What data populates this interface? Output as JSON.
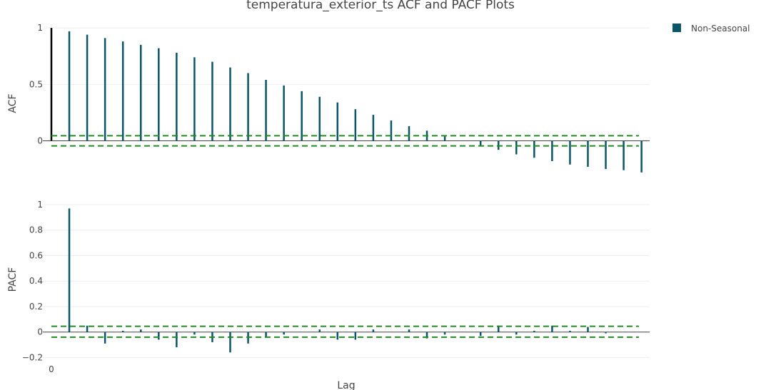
{
  "colors": {
    "series": "#0b5569",
    "lag0": "#000000",
    "confidence": "#228b22",
    "zero_line": "#444444",
    "grid": "#eeeeee"
  },
  "chart_data": {
    "type": "bar",
    "title": "temperatura_exterior_ts ACF and PACF Plots",
    "xlabel": "Lag",
    "x_tick_labels": [
      "0"
    ],
    "legend": {
      "position": "top-right",
      "entries": [
        "Non-Seasonal"
      ]
    },
    "grid": true,
    "subplots": [
      {
        "name": "acf",
        "ylabel": "ACF",
        "ylim": [
          -0.3,
          1.02
        ],
        "y_ticks": [
          0,
          0.5,
          1
        ],
        "y_tick_labels": [
          "0",
          "0.5",
          "1"
        ],
        "confidence_band": [
          -0.045,
          0.045
        ],
        "lags": [
          0,
          1,
          2,
          3,
          4,
          5,
          6,
          7,
          8,
          9,
          10,
          11,
          12,
          13,
          14,
          15,
          16,
          17,
          18,
          19,
          20,
          21,
          22,
          23,
          24,
          25,
          26,
          27,
          28,
          29,
          30,
          31,
          32,
          33
        ],
        "values": [
          1.0,
          0.97,
          0.94,
          0.91,
          0.88,
          0.85,
          0.82,
          0.78,
          0.74,
          0.7,
          0.65,
          0.6,
          0.54,
          0.49,
          0.44,
          0.39,
          0.34,
          0.28,
          0.23,
          0.18,
          0.13,
          0.09,
          0.04,
          0.0,
          -0.04,
          -0.08,
          -0.12,
          -0.15,
          -0.18,
          -0.21,
          -0.23,
          -0.25,
          -0.26,
          -0.28
        ]
      },
      {
        "name": "pacf",
        "ylabel": "PACF",
        "ylim": [
          -0.22,
          1.0
        ],
        "y_ticks": [
          -0.2,
          0,
          0.2,
          0.4,
          0.6,
          0.8,
          1
        ],
        "y_tick_labels": [
          "−0.2",
          "0",
          "0.2",
          "0.4",
          "0.6",
          "0.8",
          "1"
        ],
        "confidence_band": [
          -0.04,
          0.045
        ],
        "lags": [
          1,
          2,
          3,
          4,
          5,
          6,
          7,
          8,
          9,
          10,
          11,
          12,
          13,
          14,
          15,
          16,
          17,
          18,
          19,
          20,
          21,
          22,
          23,
          24,
          25,
          26,
          27,
          28,
          29,
          30,
          31,
          32,
          33
        ],
        "values": [
          0.97,
          0.05,
          -0.09,
          0.01,
          0.02,
          -0.06,
          -0.12,
          -0.02,
          -0.08,
          -0.16,
          -0.09,
          -0.04,
          -0.02,
          0.0,
          0.02,
          -0.06,
          -0.06,
          0.02,
          0.0,
          0.02,
          -0.05,
          -0.02,
          0.0,
          -0.03,
          0.05,
          -0.02,
          0.01,
          0.05,
          0.01,
          0.04,
          -0.01,
          0.0,
          0.0
        ]
      }
    ]
  }
}
